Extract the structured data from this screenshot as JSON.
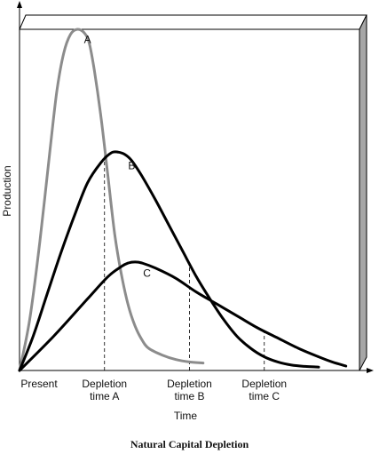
{
  "caption": "Natural  Capital  Depletion",
  "colors": {
    "curve_A": "#8c8c8c",
    "curve_B": "#000000",
    "curve_C": "#000000",
    "panel_side": "#a6a6a6"
  },
  "chart_data": {
    "type": "line",
    "title": "",
    "xlabel": "Time",
    "ylabel": "Production",
    "x_ticks": [
      {
        "x": 0,
        "label": "Present"
      },
      {
        "x": 25,
        "label": "Depletion time A"
      },
      {
        "x": 50,
        "label": "Depletion time B"
      },
      {
        "x": 72,
        "label": "Depletion time C"
      }
    ],
    "xlim": [
      0,
      100
    ],
    "ylim": [
      0,
      100
    ],
    "depletion_markers": [
      {
        "x": 25,
        "series": "A"
      },
      {
        "x": 50,
        "series": "B"
      },
      {
        "x": 72,
        "series": "C"
      }
    ],
    "series": [
      {
        "name": "A",
        "label": "A",
        "label_at": [
          20,
          97
        ],
        "x": [
          0,
          3,
          6,
          9,
          11,
          13,
          15,
          17,
          19,
          20.5,
          22,
          24,
          26,
          28,
          30,
          32,
          34,
          36,
          38,
          42,
          46,
          50,
          54
        ],
        "y": [
          0,
          15,
          38,
          65,
          82,
          93,
          98.5,
          100,
          99,
          96,
          88,
          74,
          57,
          40,
          28,
          19,
          13,
          9,
          6.5,
          4.5,
          3.2,
          2.5,
          2.2
        ]
      },
      {
        "name": "B",
        "label": "B",
        "label_at": [
          33,
          60
        ],
        "x": [
          0,
          4,
          8,
          12,
          16,
          20,
          24,
          27,
          29,
          31,
          33,
          36,
          40,
          44,
          48,
          52,
          56,
          60,
          64,
          68,
          72,
          76,
          80,
          84,
          88
        ],
        "y": [
          0,
          10,
          22,
          34,
          45,
          55,
          61,
          63.8,
          64,
          63.3,
          61.5,
          57,
          50,
          42.5,
          35,
          27.5,
          21,
          15,
          10,
          6.5,
          4,
          2.5,
          1.6,
          1.2,
          1
        ]
      },
      {
        "name": "C",
        "label": "C",
        "label_at": [
          37.5,
          28.5
        ],
        "x": [
          0,
          10,
          20,
          26,
          30,
          32,
          34,
          36,
          40,
          46,
          52,
          58,
          64,
          70,
          76,
          82,
          88,
          92,
          96
        ],
        "y": [
          0,
          10,
          21,
          27.5,
          30.5,
          31.5,
          31.8,
          31.5,
          30,
          27,
          23,
          19.5,
          16,
          12.5,
          9.5,
          6.5,
          4,
          2.5,
          1.3
        ]
      }
    ],
    "grid": false
  }
}
